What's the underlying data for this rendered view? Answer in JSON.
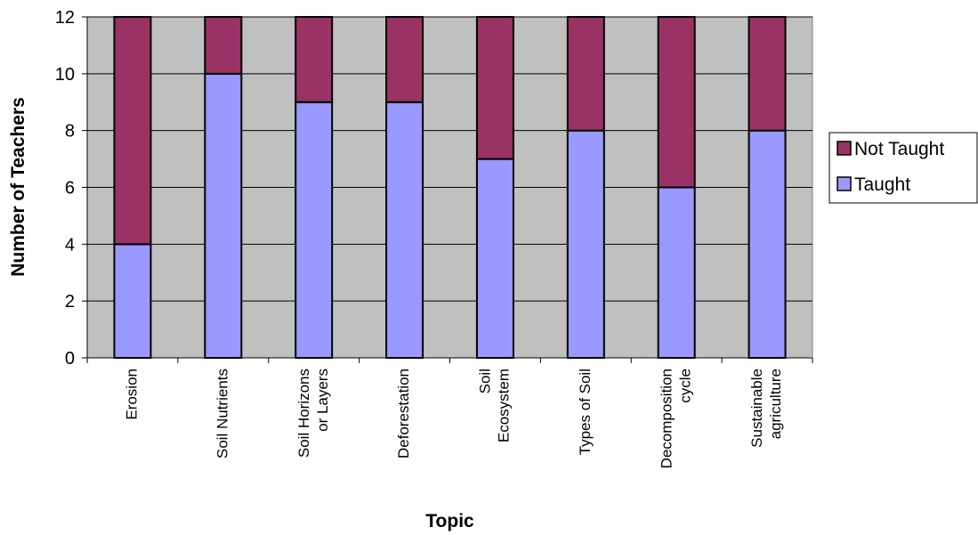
{
  "chart_data": {
    "type": "bar",
    "stacked": true,
    "xlabel": "Topic",
    "ylabel": "Number of Teachers",
    "ylim": [
      0,
      12
    ],
    "yticks": [
      0,
      2,
      4,
      6,
      8,
      10,
      12
    ],
    "grid": true,
    "legend_position": "right",
    "categories": [
      [
        "Erosion"
      ],
      [
        "Soil Nutrients"
      ],
      [
        "Soil Horizons",
        "or Layers"
      ],
      [
        "Deforestation"
      ],
      [
        "Soil",
        "Ecosystem"
      ],
      [
        "Types of Soil"
      ],
      [
        "Decomposition",
        "cycle"
      ],
      [
        "Sustainable",
        "agriculture"
      ]
    ],
    "series": [
      {
        "name": "Taught",
        "color": "#9999ff",
        "values": [
          4,
          10,
          9,
          9,
          7,
          8,
          6,
          8
        ]
      },
      {
        "name": "Not Taught",
        "color": "#993366",
        "values": [
          8,
          2,
          3,
          3,
          5,
          4,
          6,
          4
        ]
      }
    ],
    "legend_order": [
      "Not Taught",
      "Taught"
    ],
    "plot_background": "#c0c0c0"
  }
}
